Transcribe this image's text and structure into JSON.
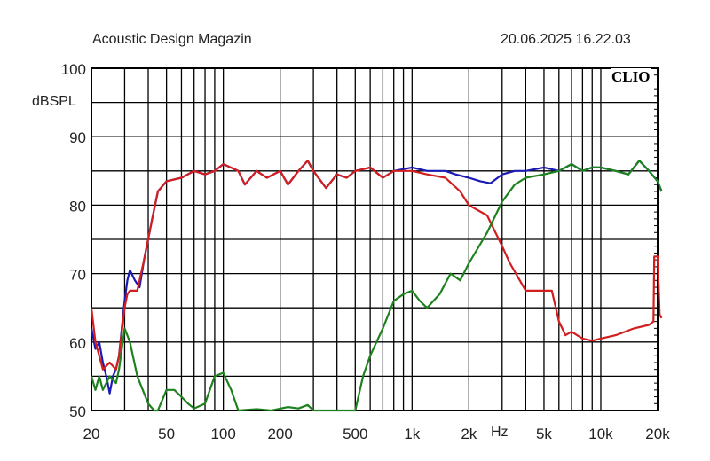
{
  "header": {
    "title": "Acoustic Design Magazin",
    "timestamp": "20.06.2025 16.22.03",
    "brand": "CLIO"
  },
  "chart_data": {
    "type": "line",
    "title": "Acoustic Design Magazin",
    "xlabel": "Hz",
    "ylabel": "dBSPL",
    "xscale": "log",
    "xlim": [
      20,
      20000
    ],
    "ylim": [
      50,
      100
    ],
    "grid": true,
    "x_ticks": [
      {
        "v": 20,
        "label": "20"
      },
      {
        "v": 50,
        "label": "50"
      },
      {
        "v": 100,
        "label": "100"
      },
      {
        "v": 200,
        "label": "200"
      },
      {
        "v": 500,
        "label": "500"
      },
      {
        "v": 1000,
        "label": "1k"
      },
      {
        "v": 2000,
        "label": "2k"
      },
      {
        "v": 5000,
        "label": "5k"
      },
      {
        "v": 10000,
        "label": "10k"
      },
      {
        "v": 20000,
        "label": "20k"
      }
    ],
    "y_ticks": [
      {
        "v": 100,
        "label": "100"
      },
      {
        "v": 90,
        "label": "90"
      },
      {
        "v": 80,
        "label": "80"
      },
      {
        "v": 70,
        "label": "70"
      },
      {
        "v": 60,
        "label": "60"
      },
      {
        "v": 50,
        "label": "50"
      }
    ],
    "series": [
      {
        "color": "#1a1ab4",
        "points": [
          [
            20,
            62
          ],
          [
            21,
            59
          ],
          [
            22,
            60
          ],
          [
            23,
            57
          ],
          [
            24,
            55
          ],
          [
            25,
            52.5
          ],
          [
            26,
            55
          ],
          [
            27,
            56
          ],
          [
            28,
            58
          ],
          [
            30,
            66
          ],
          [
            31,
            69
          ],
          [
            32,
            70.5
          ],
          [
            34,
            69
          ],
          [
            36,
            68
          ],
          [
            38,
            72
          ],
          [
            42,
            78
          ],
          [
            45,
            82
          ],
          [
            50,
            83.5
          ],
          [
            60,
            84
          ],
          [
            70,
            85
          ],
          [
            80,
            84.5
          ],
          [
            90,
            85
          ],
          [
            100,
            86
          ],
          [
            120,
            85
          ],
          [
            130,
            83
          ],
          [
            150,
            85
          ],
          [
            170,
            84
          ],
          [
            200,
            85
          ],
          [
            220,
            83
          ],
          [
            250,
            85
          ],
          [
            280,
            86.5
          ],
          [
            300,
            85
          ],
          [
            350,
            82.5
          ],
          [
            400,
            84.5
          ],
          [
            450,
            84
          ],
          [
            500,
            85
          ],
          [
            600,
            85.5
          ],
          [
            700,
            84
          ],
          [
            800,
            85
          ],
          [
            1000,
            85.5
          ],
          [
            1200,
            85
          ],
          [
            1500,
            85
          ],
          [
            1700,
            84.5
          ],
          [
            2000,
            84
          ],
          [
            2300,
            83.5
          ],
          [
            2600,
            83.2
          ],
          [
            3000,
            84.5
          ],
          [
            3500,
            85
          ],
          [
            4000,
            85
          ],
          [
            5000,
            85.5
          ],
          [
            6000,
            85
          ],
          [
            7000,
            86
          ],
          [
            8000,
            85
          ],
          [
            9000,
            85.5
          ],
          [
            10000,
            85.5
          ],
          [
            12000,
            85
          ],
          [
            14000,
            84.5
          ],
          [
            16000,
            86.5
          ],
          [
            18000,
            85
          ],
          [
            20000,
            83.5
          ],
          [
            21000,
            82
          ]
        ]
      },
      {
        "color": "#d21e1e",
        "points": [
          [
            20,
            65
          ],
          [
            21,
            60
          ],
          [
            22,
            58
          ],
          [
            23,
            56
          ],
          [
            25,
            57
          ],
          [
            27,
            56
          ],
          [
            28,
            58
          ],
          [
            30,
            65
          ],
          [
            31,
            67
          ],
          [
            32,
            67.5
          ],
          [
            35,
            67.5
          ],
          [
            38,
            72
          ],
          [
            42,
            78
          ],
          [
            45,
            82
          ],
          [
            50,
            83.5
          ],
          [
            60,
            84
          ],
          [
            70,
            85
          ],
          [
            80,
            84.5
          ],
          [
            90,
            85
          ],
          [
            100,
            86
          ],
          [
            120,
            85
          ],
          [
            130,
            83
          ],
          [
            150,
            85
          ],
          [
            170,
            84
          ],
          [
            200,
            85
          ],
          [
            220,
            83
          ],
          [
            250,
            85
          ],
          [
            280,
            86.5
          ],
          [
            300,
            85
          ],
          [
            350,
            82.5
          ],
          [
            400,
            84.5
          ],
          [
            450,
            84
          ],
          [
            500,
            85
          ],
          [
            600,
            85.5
          ],
          [
            700,
            84
          ],
          [
            800,
            85
          ],
          [
            1000,
            85
          ],
          [
            1200,
            84.5
          ],
          [
            1500,
            84
          ],
          [
            1800,
            82
          ],
          [
            2000,
            80
          ],
          [
            2500,
            78.5
          ],
          [
            3000,
            74
          ],
          [
            3300,
            71.5
          ],
          [
            4000,
            67.5
          ],
          [
            5000,
            67.5
          ],
          [
            5500,
            67.5
          ],
          [
            6000,
            63
          ],
          [
            6500,
            61
          ],
          [
            7000,
            61.5
          ],
          [
            8000,
            60.5
          ],
          [
            9000,
            60.2
          ],
          [
            10000,
            60.5
          ],
          [
            12000,
            61
          ],
          [
            15000,
            62
          ],
          [
            18000,
            62.5
          ],
          [
            19000,
            63
          ],
          [
            19200,
            72.5
          ],
          [
            20000,
            72.5
          ],
          [
            20500,
            64
          ],
          [
            21000,
            63.5
          ]
        ]
      },
      {
        "color": "#1e821e",
        "points": [
          [
            20,
            55
          ],
          [
            21,
            53
          ],
          [
            22,
            55
          ],
          [
            23,
            53
          ],
          [
            25,
            55
          ],
          [
            27,
            54
          ],
          [
            28,
            56
          ],
          [
            30,
            62
          ],
          [
            32,
            60
          ],
          [
            35,
            55
          ],
          [
            40,
            51
          ],
          [
            43,
            50
          ],
          [
            45,
            50
          ],
          [
            50,
            53
          ],
          [
            55,
            53
          ],
          [
            60,
            52
          ],
          [
            65,
            51
          ],
          [
            70,
            50.3
          ],
          [
            80,
            51
          ],
          [
            90,
            55
          ],
          [
            100,
            55.5
          ],
          [
            110,
            53
          ],
          [
            120,
            50
          ],
          [
            150,
            50.2
          ],
          [
            180,
            50
          ],
          [
            220,
            50.5
          ],
          [
            250,
            50.3
          ],
          [
            280,
            50.8
          ],
          [
            300,
            50
          ],
          [
            500,
            50
          ],
          [
            550,
            55
          ],
          [
            600,
            58
          ],
          [
            700,
            62
          ],
          [
            800,
            66
          ],
          [
            900,
            67
          ],
          [
            1000,
            67.5
          ],
          [
            1100,
            66
          ],
          [
            1200,
            65
          ],
          [
            1400,
            67
          ],
          [
            1600,
            70
          ],
          [
            1800,
            69
          ],
          [
            2000,
            71.5
          ],
          [
            2500,
            76
          ],
          [
            3000,
            80.5
          ],
          [
            3500,
            83
          ],
          [
            4000,
            84
          ],
          [
            5000,
            84.5
          ],
          [
            6000,
            85
          ],
          [
            7000,
            86
          ],
          [
            8000,
            85
          ],
          [
            9000,
            85.5
          ],
          [
            10000,
            85.5
          ],
          [
            12000,
            85
          ],
          [
            14000,
            84.5
          ],
          [
            16000,
            86.5
          ],
          [
            18000,
            85
          ],
          [
            20000,
            83.5
          ],
          [
            21000,
            82
          ]
        ]
      }
    ]
  }
}
